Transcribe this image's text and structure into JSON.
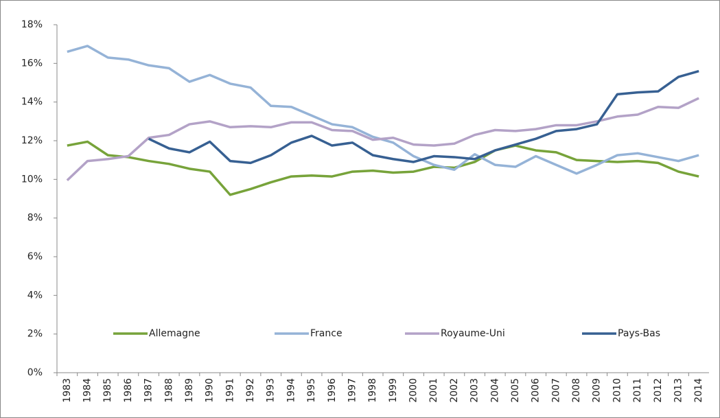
{
  "chart_data": {
    "type": "line",
    "categories": [
      "1983",
      "1984",
      "1985",
      "1986",
      "1987",
      "1988",
      "1989",
      "1990",
      "1991",
      "1992",
      "1993",
      "1994",
      "1995",
      "1996",
      "1997",
      "1998",
      "1999",
      "2000",
      "2001",
      "2002",
      "2003",
      "2004",
      "2005",
      "2006",
      "2007",
      "2008",
      "2009",
      "2010",
      "2011",
      "2012",
      "2013",
      "2014"
    ],
    "series": [
      {
        "name": "Allemagne",
        "color": "#77a33a",
        "values": [
          11.75,
          11.95,
          11.25,
          11.15,
          10.95,
          10.8,
          10.55,
          10.4,
          9.2,
          9.5,
          9.85,
          10.15,
          10.2,
          10.15,
          10.4,
          10.45,
          10.35,
          10.4,
          10.65,
          10.6,
          10.9,
          11.5,
          11.75,
          11.5,
          11.4,
          11.0,
          10.95,
          10.9,
          10.95,
          10.85,
          10.4,
          10.15
        ]
      },
      {
        "name": "France",
        "color": "#95b3d7",
        "values": [
          16.6,
          16.9,
          16.3,
          16.2,
          15.9,
          15.75,
          15.05,
          15.4,
          14.95,
          14.75,
          13.8,
          13.75,
          13.3,
          12.85,
          12.7,
          12.2,
          11.9,
          11.2,
          10.75,
          10.5,
          11.3,
          10.75,
          10.65,
          11.2,
          10.75,
          10.3,
          10.75,
          11.25,
          11.35,
          11.15,
          10.95,
          11.25
        ]
      },
      {
        "name": "Royaume-Uni",
        "color": "#b3a2c7",
        "values": [
          9.95,
          10.95,
          11.05,
          11.2,
          12.15,
          12.3,
          12.85,
          13.0,
          12.7,
          12.75,
          12.7,
          12.95,
          12.95,
          12.55,
          12.5,
          12.05,
          12.15,
          11.8,
          11.75,
          11.85,
          12.3,
          12.55,
          12.5,
          12.6,
          12.8,
          12.8,
          13.0,
          13.25,
          13.35,
          13.75,
          13.7,
          14.2
        ]
      },
      {
        "name": "Pays-Bas",
        "color": "#376092",
        "values": [
          null,
          null,
          null,
          null,
          12.1,
          11.6,
          11.4,
          11.95,
          10.95,
          10.85,
          11.25,
          11.9,
          12.25,
          11.75,
          11.9,
          11.25,
          11.05,
          10.9,
          11.2,
          11.15,
          11.05,
          11.5,
          11.8,
          12.1,
          12.5,
          12.6,
          12.85,
          14.4,
          14.5,
          14.55,
          15.3,
          15.6
        ]
      }
    ],
    "ylim": [
      0,
      18
    ],
    "yticks": [
      {
        "value": 0,
        "label": "0%"
      },
      {
        "value": 2,
        "label": "2%"
      },
      {
        "value": 4,
        "label": "4%"
      },
      {
        "value": 6,
        "label": "6%"
      },
      {
        "value": 8,
        "label": "8%"
      },
      {
        "value": 10,
        "label": "10%"
      },
      {
        "value": 12,
        "label": "12%"
      },
      {
        "value": 14,
        "label": "14%"
      },
      {
        "value": 16,
        "label": "16%"
      },
      {
        "value": 18,
        "label": "18%"
      }
    ],
    "legend": "bottom"
  }
}
